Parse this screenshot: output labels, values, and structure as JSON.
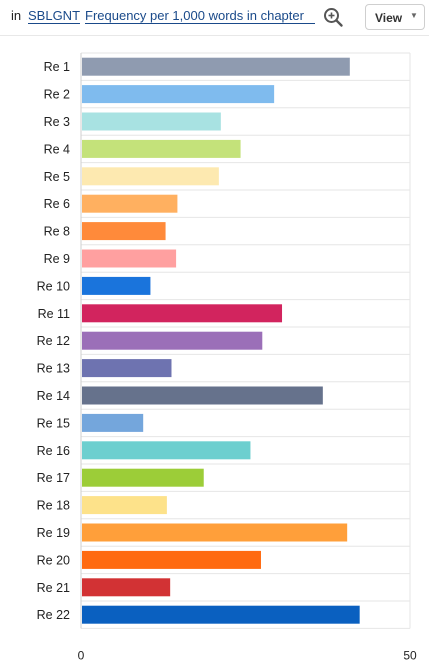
{
  "toolbar": {
    "prefix": "in",
    "corpus_link": "SBLGNT",
    "measure_link": "Frequency per 1,000 words in chapter",
    "zoom_icon": "zoom-in-icon",
    "view_label": "View",
    "view_caret_icon": "caret-down-icon"
  },
  "chart_data": {
    "type": "bar",
    "orientation": "horizontal",
    "categories": [
      "Re 1",
      "Re 2",
      "Re 3",
      "Re 4",
      "Re 5",
      "Re 6",
      "Re 8",
      "Re 9",
      "Re 10",
      "Re 11",
      "Re 12",
      "Re 13",
      "Re 14",
      "Re 15",
      "Re 16",
      "Re 17",
      "Re 18",
      "Re 19",
      "Re 20",
      "Re 21",
      "Re 22"
    ],
    "values": [
      40.7,
      29.2,
      21.1,
      24.1,
      20.8,
      14.5,
      12.7,
      14.3,
      10.4,
      30.4,
      27.4,
      13.6,
      36.6,
      9.3,
      25.6,
      18.5,
      12.9,
      40.3,
      27.2,
      13.4,
      42.2
    ],
    "colors": [
      "#8f9bb0",
      "#7fbbee",
      "#a8e2e2",
      "#c4e27a",
      "#fde9b0",
      "#ffb060",
      "#ff8a3a",
      "#ffa0a0",
      "#1a74dc",
      "#d2245e",
      "#9b6fb8",
      "#6e73b0",
      "#66728c",
      "#74a6dc",
      "#6dcfcf",
      "#9ccd38",
      "#fde28a",
      "#ff9f3a",
      "#ff6a10",
      "#d23234",
      "#0a60c0"
    ],
    "xlim": [
      0,
      50
    ],
    "x_ticks": [
      "0",
      "50"
    ],
    "grid": true,
    "title": "",
    "xlabel": "",
    "ylabel": ""
  }
}
